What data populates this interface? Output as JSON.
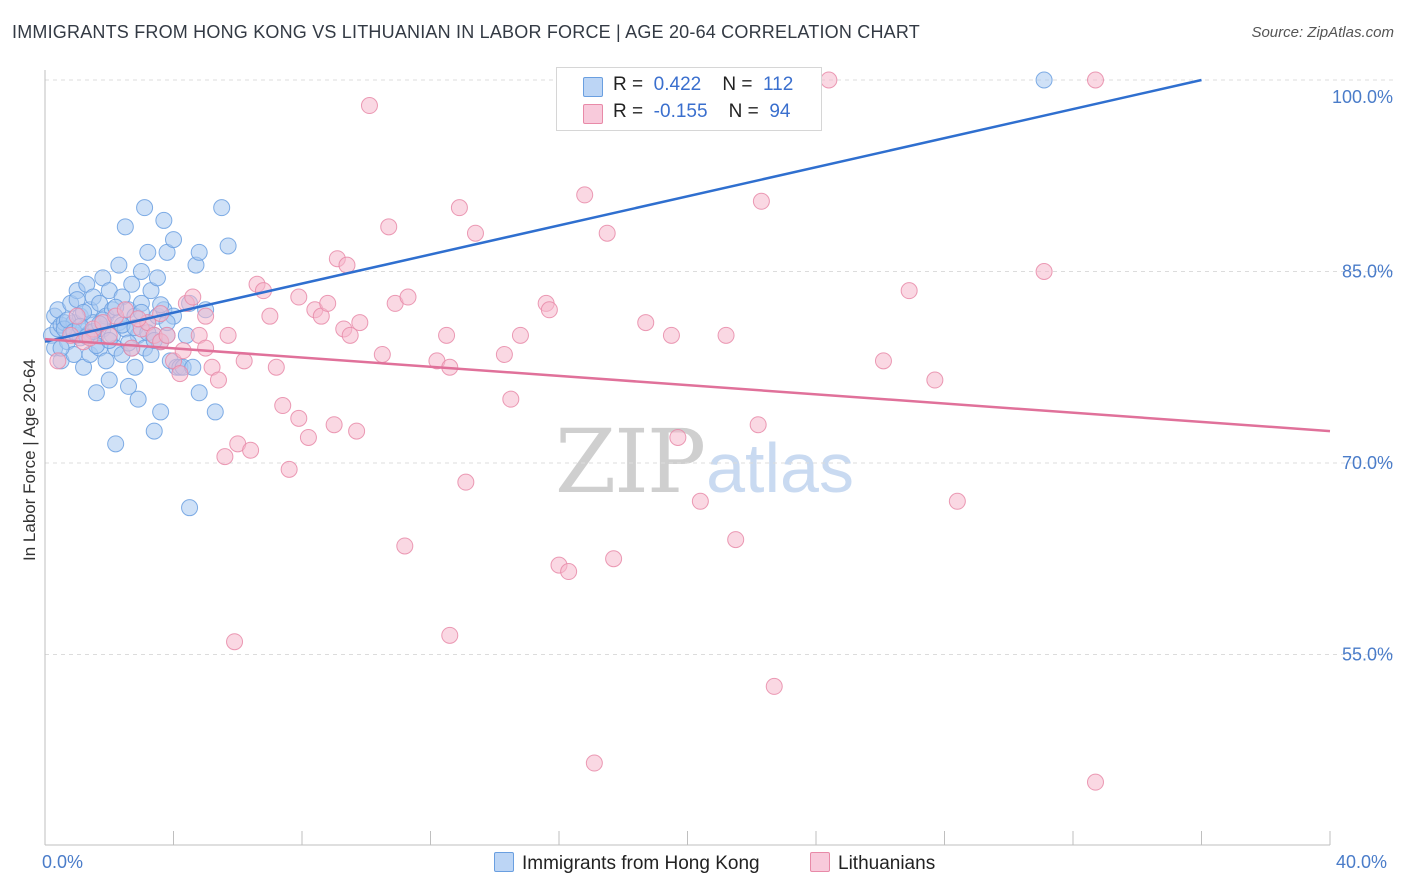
{
  "header": {
    "title": "IMMIGRANTS FROM HONG KONG VS LITHUANIAN IN LABOR FORCE | AGE 20-64 CORRELATION CHART",
    "source": "Source: ZipAtlas.com"
  },
  "legend": {
    "r_label": "R =",
    "n_label": "N =",
    "rows": [
      {
        "r": "0.422",
        "n": "112",
        "color": "#a8c8f0"
      },
      {
        "r": "-0.155",
        "n": "94",
        "color": "#f6b8cc"
      }
    ]
  },
  "watermark": {
    "zip": "ZIP",
    "atlas": "atlas"
  },
  "chart_data": {
    "type": "scatter",
    "ylabel": "In Labor Force | Age 20-64",
    "xlabel": "",
    "xlim": [
      0,
      40
    ],
    "ylim": [
      40,
      102
    ],
    "x_tick_labels": [
      "0.0%",
      "40.0%"
    ],
    "y_ticks": [
      100,
      85,
      70,
      55
    ],
    "y_tick_labels": [
      "100.0%",
      "85.0%",
      "70.0%",
      "55.0%"
    ],
    "grid": true,
    "legend_position": "top-center",
    "series": [
      {
        "name": "Immigrants from Hong Kong",
        "color": "#6a9fe0",
        "fill": "#a8c8f0",
        "trend": {
          "x": [
            0.0,
            36.0
          ],
          "y": [
            79.5,
            100.0
          ],
          "color": "#2f6fcf"
        },
        "points": [
          [
            0.2,
            80.0
          ],
          [
            0.3,
            81.5
          ],
          [
            0.3,
            79.0
          ],
          [
            0.4,
            80.5
          ],
          [
            0.4,
            82.0
          ],
          [
            0.5,
            78.0
          ],
          [
            0.5,
            80.8
          ],
          [
            0.6,
            81.0
          ],
          [
            0.7,
            79.5
          ],
          [
            0.8,
            80.2
          ],
          [
            0.8,
            82.5
          ],
          [
            0.9,
            81.0
          ],
          [
            0.9,
            78.5
          ],
          [
            1.0,
            80.0
          ],
          [
            1.0,
            83.5
          ],
          [
            1.1,
            79.8
          ],
          [
            1.1,
            81.5
          ],
          [
            1.2,
            80.5
          ],
          [
            1.2,
            77.5
          ],
          [
            1.3,
            84.0
          ],
          [
            1.3,
            80.0
          ],
          [
            1.4,
            82.0
          ],
          [
            1.4,
            78.5
          ],
          [
            1.5,
            83.0
          ],
          [
            1.5,
            81.0
          ],
          [
            1.6,
            80.0
          ],
          [
            1.6,
            75.5
          ],
          [
            1.7,
            82.5
          ],
          [
            1.7,
            79.0
          ],
          [
            1.8,
            84.5
          ],
          [
            1.8,
            80.5
          ],
          [
            1.9,
            81.5
          ],
          [
            1.9,
            78.0
          ],
          [
            2.0,
            83.5
          ],
          [
            2.0,
            76.5
          ],
          [
            2.1,
            80.0
          ],
          [
            2.1,
            82.0
          ],
          [
            2.2,
            79.0
          ],
          [
            2.2,
            71.5
          ],
          [
            2.3,
            85.5
          ],
          [
            2.3,
            81.0
          ],
          [
            2.4,
            83.0
          ],
          [
            2.4,
            78.5
          ],
          [
            2.5,
            88.5
          ],
          [
            2.5,
            80.5
          ],
          [
            2.6,
            82.0
          ],
          [
            2.6,
            76.0
          ],
          [
            2.7,
            79.0
          ],
          [
            2.7,
            84.0
          ],
          [
            2.8,
            81.5
          ],
          [
            2.8,
            77.5
          ],
          [
            2.9,
            80.0
          ],
          [
            2.9,
            75.0
          ],
          [
            3.0,
            85.0
          ],
          [
            3.0,
            82.5
          ],
          [
            3.1,
            79.0
          ],
          [
            3.1,
            90.0
          ],
          [
            3.2,
            81.0
          ],
          [
            3.2,
            86.5
          ],
          [
            3.3,
            78.5
          ],
          [
            3.3,
            83.5
          ],
          [
            3.4,
            80.0
          ],
          [
            3.4,
            72.5
          ],
          [
            3.5,
            84.5
          ],
          [
            3.5,
            81.5
          ],
          [
            3.6,
            79.5
          ],
          [
            3.6,
            74.0
          ],
          [
            3.7,
            82.0
          ],
          [
            3.7,
            89.0
          ],
          [
            3.8,
            80.0
          ],
          [
            3.8,
            86.5
          ],
          [
            3.9,
            78.0
          ],
          [
            4.0,
            87.5
          ],
          [
            4.0,
            81.5
          ],
          [
            4.1,
            77.5
          ],
          [
            4.2,
            77.5
          ],
          [
            4.3,
            77.5
          ],
          [
            4.4,
            80.0
          ],
          [
            4.5,
            82.5
          ],
          [
            4.6,
            77.5
          ],
          [
            4.7,
            85.5
          ],
          [
            4.8,
            86.5
          ],
          [
            4.8,
            75.5
          ],
          [
            5.0,
            82.0
          ],
          [
            5.3,
            74.0
          ],
          [
            5.5,
            90.0
          ],
          [
            5.7,
            87.0
          ],
          [
            4.5,
            66.5
          ],
          [
            0.5,
            79.0
          ],
          [
            0.6,
            80.5
          ],
          [
            0.7,
            81.2
          ],
          [
            0.9,
            80.3
          ],
          [
            1.0,
            82.8
          ],
          [
            1.2,
            81.8
          ],
          [
            1.4,
            80.2
          ],
          [
            1.6,
            79.2
          ],
          [
            1.8,
            81.2
          ],
          [
            2.0,
            79.6
          ],
          [
            2.2,
            82.2
          ],
          [
            2.4,
            80.8
          ],
          [
            2.6,
            79.4
          ],
          [
            2.8,
            80.6
          ],
          [
            3.0,
            81.8
          ],
          [
            3.2,
            80.2
          ],
          [
            3.4,
            79.6
          ],
          [
            3.6,
            82.4
          ],
          [
            3.8,
            81.0
          ],
          [
            1.1,
            80.7
          ],
          [
            1.3,
            79.9
          ],
          [
            1.5,
            80.3
          ],
          [
            1.7,
            80.9
          ],
          [
            31.1,
            100.0
          ]
        ]
      },
      {
        "name": "Lithuanians",
        "color": "#e88aa8",
        "fill": "#f6b8cc",
        "trend": {
          "x": [
            0.0,
            40.0
          ],
          "y": [
            79.7,
            72.5
          ],
          "color": "#e0719a"
        },
        "points": [
          [
            0.4,
            78.0
          ],
          [
            0.8,
            80.0
          ],
          [
            1.0,
            81.5
          ],
          [
            1.2,
            79.5
          ],
          [
            1.5,
            80.5
          ],
          [
            1.8,
            81.0
          ],
          [
            2.0,
            80.0
          ],
          [
            2.2,
            81.5
          ],
          [
            2.5,
            82.0
          ],
          [
            2.7,
            79.0
          ],
          [
            3.0,
            80.5
          ],
          [
            3.2,
            81.0
          ],
          [
            3.4,
            80.0
          ],
          [
            3.6,
            79.5
          ],
          [
            3.8,
            80.0
          ],
          [
            4.0,
            78.0
          ],
          [
            4.2,
            77.0
          ],
          [
            4.4,
            82.5
          ],
          [
            4.6,
            83.0
          ],
          [
            4.8,
            80.0
          ],
          [
            5.0,
            81.5
          ],
          [
            5.0,
            79.0
          ],
          [
            5.2,
            77.5
          ],
          [
            5.4,
            76.5
          ],
          [
            5.6,
            70.5
          ],
          [
            5.7,
            80.0
          ],
          [
            5.9,
            56.0
          ],
          [
            6.0,
            71.5
          ],
          [
            6.2,
            78.0
          ],
          [
            6.4,
            71.0
          ],
          [
            6.6,
            84.0
          ],
          [
            6.8,
            83.5
          ],
          [
            7.0,
            81.5
          ],
          [
            7.2,
            77.5
          ],
          [
            7.4,
            74.5
          ],
          [
            7.6,
            69.5
          ],
          [
            7.9,
            83.0
          ],
          [
            7.9,
            73.5
          ],
          [
            8.2,
            72.0
          ],
          [
            8.4,
            82.0
          ],
          [
            8.6,
            81.5
          ],
          [
            8.8,
            82.5
          ],
          [
            9.0,
            73.0
          ],
          [
            9.1,
            86.0
          ],
          [
            9.3,
            80.5
          ],
          [
            9.4,
            85.5
          ],
          [
            9.5,
            80.0
          ],
          [
            9.7,
            72.5
          ],
          [
            9.8,
            81.0
          ],
          [
            10.1,
            98.0
          ],
          [
            10.5,
            78.5
          ],
          [
            10.7,
            88.5
          ],
          [
            10.9,
            82.5
          ],
          [
            11.2,
            63.5
          ],
          [
            11.3,
            83.0
          ],
          [
            12.2,
            78.0
          ],
          [
            12.5,
            80.0
          ],
          [
            12.6,
            77.5
          ],
          [
            12.6,
            56.5
          ],
          [
            12.9,
            90.0
          ],
          [
            13.1,
            68.5
          ],
          [
            13.4,
            88.0
          ],
          [
            14.3,
            78.5
          ],
          [
            14.5,
            75.0
          ],
          [
            14.8,
            80.0
          ],
          [
            15.6,
            82.5
          ],
          [
            15.7,
            82.0
          ],
          [
            16.0,
            62.0
          ],
          [
            16.3,
            61.5
          ],
          [
            16.8,
            91.0
          ],
          [
            17.1,
            46.5
          ],
          [
            17.5,
            88.0
          ],
          [
            17.7,
            62.5
          ],
          [
            18.7,
            81.0
          ],
          [
            19.5,
            80.0
          ],
          [
            19.7,
            72.0
          ],
          [
            20.4,
            67.0
          ],
          [
            21.2,
            80.0
          ],
          [
            21.5,
            64.0
          ],
          [
            22.3,
            90.5
          ],
          [
            22.2,
            73.0
          ],
          [
            22.7,
            52.5
          ],
          [
            24.4,
            100.0
          ],
          [
            26.1,
            78.0
          ],
          [
            26.9,
            83.5
          ],
          [
            27.7,
            76.5
          ],
          [
            28.4,
            67.0
          ],
          [
            31.1,
            85.0
          ],
          [
            32.7,
            100.0
          ],
          [
            32.7,
            45.0
          ],
          [
            1.4,
            79.8
          ],
          [
            2.9,
            81.3
          ],
          [
            3.6,
            81.7
          ],
          [
            4.3,
            78.8
          ]
        ]
      }
    ]
  }
}
